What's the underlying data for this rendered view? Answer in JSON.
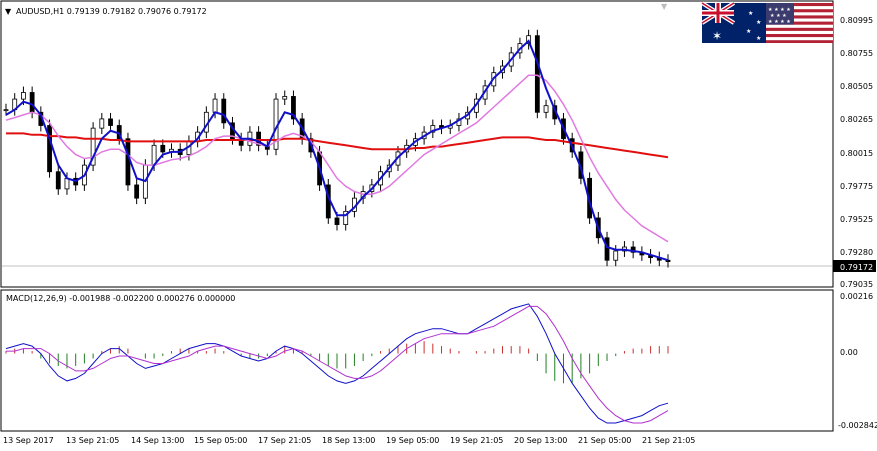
{
  "header": {
    "symbol_line": "AUDUSD,H1  0.79139 0.79182 0.79076 0.79172",
    "dropdown_icon": "triangle-down-icon"
  },
  "flags": {
    "base": "australia-flag",
    "quote": "usa-flag"
  },
  "price_axis": {
    "ticks": [
      "0.80995",
      "0.80755",
      "0.80505",
      "0.80265",
      "0.80015",
      "0.79775",
      "0.79525",
      "0.79280",
      "0.79035"
    ],
    "tick_values": [
      0.80995,
      0.80755,
      0.80505,
      0.80265,
      0.80015,
      0.79775,
      0.79525,
      0.7928,
      0.79035
    ],
    "current_price": "0.79172",
    "current_value": 0.79172
  },
  "macd": {
    "label": "MACD(12,26,9) -0.001988 -0.002200 0.000276 0.000000",
    "axis_ticks": [
      "0.00216",
      "0.00",
      "-0.002842"
    ],
    "axis_values": [
      0.00216,
      0.0,
      -0.002842
    ]
  },
  "time_axis": {
    "labels": [
      "13 Sep 2017",
      "13 Sep 21:05",
      "14 Sep 13:00",
      "15 Sep 05:00",
      "17 Sep 21:05",
      "18 Sep 13:00",
      "19 Sep 05:00",
      "19 Sep 21:05",
      "20 Sep 13:00",
      "21 Sep 05:00",
      "21 Sep 21:05"
    ]
  },
  "colors": {
    "ma_fast": "#1010c8",
    "ma_mid": "#e07ae0",
    "ma_slow": "#e01010",
    "macd_line": "#1010c8",
    "signal_line": "#b030d0",
    "hist_pos": "#c83030",
    "hist_neg": "#208020",
    "candle": "#000000"
  },
  "chart_data": {
    "type": "candlestick",
    "ylim": [
      0.79,
      0.8112
    ],
    "close": [
      0.8032,
      0.804,
      0.8045,
      0.803,
      0.802,
      0.7985,
      0.7972,
      0.798,
      0.7975,
      0.799,
      0.8018,
      0.8025,
      0.802,
      0.801,
      0.7975,
      0.7965,
      0.799,
      0.8005,
      0.8,
      0.8002,
      0.7998,
      0.8008,
      0.8015,
      0.803,
      0.804,
      0.8022,
      0.801,
      0.8005,
      0.8015,
      0.8005,
      0.8002,
      0.804,
      0.8042,
      0.8025,
      0.801,
      0.8,
      0.7975,
      0.795,
      0.7945,
      0.7955,
      0.7965,
      0.797,
      0.7975,
      0.7985,
      0.799,
      0.8,
      0.8005,
      0.801,
      0.8015,
      0.802,
      0.8018,
      0.802,
      0.8025,
      0.803,
      0.804,
      0.805,
      0.806,
      0.8065,
      0.8075,
      0.8082,
      0.8088,
      0.803,
      0.8035,
      0.8025,
      0.801,
      0.8,
      0.798,
      0.795,
      0.7935,
      0.7918,
      0.7925,
      0.7928,
      0.7924,
      0.7922,
      0.792,
      0.7918,
      0.7917
    ],
    "sma_fast": [
      0.8028,
      0.8032,
      0.8038,
      0.8036,
      0.8028,
      0.801,
      0.799,
      0.798,
      0.7978,
      0.7982,
      0.7996,
      0.801,
      0.8016,
      0.8014,
      0.7998,
      0.798,
      0.7978,
      0.799,
      0.7998,
      0.8,
      0.8,
      0.8004,
      0.801,
      0.802,
      0.803,
      0.8028,
      0.8018,
      0.801,
      0.801,
      0.8008,
      0.8004,
      0.8018,
      0.803,
      0.8028,
      0.8018,
      0.8006,
      0.7988,
      0.7966,
      0.7952,
      0.7952,
      0.7958,
      0.7966,
      0.7972,
      0.798,
      0.7988,
      0.7996,
      0.8002,
      0.8008,
      0.8012,
      0.8016,
      0.8018,
      0.802,
      0.8024,
      0.8028,
      0.8036,
      0.8046,
      0.8056,
      0.8062,
      0.807,
      0.8078,
      0.8084,
      0.8068,
      0.8048,
      0.8032,
      0.8018,
      0.8004,
      0.7988,
      0.7962,
      0.7942,
      0.7928,
      0.7926,
      0.7926,
      0.7925,
      0.7924,
      0.7922,
      0.792,
      0.7918
    ],
    "sma_mid": [
      0.8024,
      0.8026,
      0.8028,
      0.803,
      0.8028,
      0.8022,
      0.8012,
      0.8004,
      0.7998,
      0.7995,
      0.7996,
      0.8,
      0.8002,
      0.8002,
      0.7998,
      0.7992,
      0.799,
      0.799,
      0.7992,
      0.7994,
      0.7995,
      0.7997,
      0.8,
      0.8004,
      0.801,
      0.8012,
      0.8012,
      0.801,
      0.8008,
      0.8006,
      0.8004,
      0.8008,
      0.8012,
      0.8014,
      0.8012,
      0.8008,
      0.8,
      0.799,
      0.798,
      0.7974,
      0.797,
      0.7968,
      0.7968,
      0.797,
      0.7974,
      0.798,
      0.7986,
      0.7992,
      0.7998,
      0.8002,
      0.8006,
      0.801,
      0.8014,
      0.8018,
      0.8022,
      0.8028,
      0.8034,
      0.804,
      0.8046,
      0.8052,
      0.8058,
      0.8058,
      0.8054,
      0.8046,
      0.8036,
      0.8024,
      0.801,
      0.7996,
      0.7984,
      0.7974,
      0.7964,
      0.7956,
      0.795,
      0.7944,
      0.794,
      0.7936,
      0.7932
    ],
    "sma_slow": [
      0.8014,
      0.8014,
      0.8014,
      0.8013,
      0.8013,
      0.8012,
      0.8012,
      0.8011,
      0.8011,
      0.801,
      0.801,
      0.801,
      0.8009,
      0.8009,
      0.8008,
      0.8008,
      0.8008,
      0.8008,
      0.8008,
      0.8008,
      0.8008,
      0.8008,
      0.8008,
      0.8009,
      0.8009,
      0.8009,
      0.8009,
      0.8009,
      0.8009,
      0.8009,
      0.8009,
      0.8009,
      0.801,
      0.801,
      0.801,
      0.8009,
      0.8008,
      0.8007,
      0.8006,
      0.8005,
      0.8004,
      0.8003,
      0.8002,
      0.8002,
      0.8002,
      0.8002,
      0.8002,
      0.8003,
      0.8003,
      0.8004,
      0.8004,
      0.8005,
      0.8006,
      0.8007,
      0.8008,
      0.8009,
      0.801,
      0.8011,
      0.8011,
      0.8011,
      0.8011,
      0.801,
      0.8009,
      0.8009,
      0.8008,
      0.8007,
      0.8006,
      0.8005,
      0.8004,
      0.8003,
      0.8002,
      0.8001,
      0.8,
      0.7999,
      0.7998,
      0.7997,
      0.7996
    ],
    "macd_hist": [
      0.0001,
      0.0002,
      0.0002,
      0.0001,
      -0.0002,
      -0.0004,
      -0.0005,
      -0.0006,
      -0.0005,
      -0.0004,
      -0.0002,
      0.0001,
      0.0002,
      0.0003,
      0.0002,
      0.0,
      -0.0002,
      -0.0002,
      -0.0001,
      0.0001,
      0.0002,
      0.0002,
      0.0001,
      0.0001,
      0.0002,
      0.0001,
      0.0,
      -0.0001,
      -0.0002,
      -0.0002,
      -0.0001,
      0.0001,
      0.0003,
      0.0002,
      0.0001,
      -0.0001,
      -0.0003,
      -0.0005,
      -0.0006,
      -0.0006,
      -0.0005,
      -0.0003,
      -0.0001,
      0.0001,
      0.0002,
      0.0003,
      0.0004,
      0.0004,
      0.0005,
      0.0004,
      0.0003,
      0.0002,
      0.0001,
      0.0,
      0.0001,
      0.0001,
      0.0002,
      0.0003,
      0.0003,
      0.0003,
      0.0002,
      -0.0003,
      -0.0008,
      -0.0011,
      -0.0012,
      -0.0012,
      -0.001,
      -0.0008,
      -0.0005,
      -0.0003,
      -0.0001,
      0.0001,
      0.0002,
      0.0002,
      0.0003,
      0.0003,
      0.0003
    ],
    "macd_line": [
      0.0002,
      0.0003,
      0.0004,
      0.0003,
      0.0,
      -0.0005,
      -0.0009,
      -0.0011,
      -0.001,
      -0.0008,
      -0.0004,
      0.0,
      0.0002,
      0.0002,
      -0.0001,
      -0.0004,
      -0.0006,
      -0.0005,
      -0.0004,
      -0.0002,
      0.0,
      0.0002,
      0.0003,
      0.0004,
      0.0004,
      0.0003,
      0.0001,
      -0.0001,
      -0.0002,
      -0.0003,
      -0.0002,
      0.0001,
      0.0003,
      0.0002,
      0.0,
      -0.0003,
      -0.0006,
      -0.0009,
      -0.0011,
      -0.0012,
      -0.0011,
      -0.0009,
      -0.0006,
      -0.0003,
      0.0,
      0.0003,
      0.0006,
      0.0008,
      0.0009,
      0.001,
      0.001,
      0.0009,
      0.0008,
      0.0008,
      0.001,
      0.0012,
      0.0014,
      0.0016,
      0.0018,
      0.0019,
      0.002,
      0.0015,
      0.0008,
      0.0,
      -0.0006,
      -0.0012,
      -0.0017,
      -0.0022,
      -0.0026,
      -0.0028,
      -0.0028,
      -0.0027,
      -0.0026,
      -0.0025,
      -0.0023,
      -0.0021,
      -0.002
    ],
    "signal_line": [
      0.0001,
      0.0001,
      0.0002,
      0.0002,
      0.0002,
      0.0,
      -0.0003,
      -0.0005,
      -0.0007,
      -0.0007,
      -0.0006,
      -0.0004,
      -0.0002,
      -0.0001,
      -0.0001,
      -0.0002,
      -0.0003,
      -0.0004,
      -0.0004,
      -0.0003,
      -0.0002,
      -0.0001,
      0.0001,
      0.0002,
      0.0003,
      0.0003,
      0.0002,
      0.0001,
      0.0,
      -0.0001,
      -0.0002,
      -0.0001,
      0.0001,
      0.0002,
      0.0001,
      -0.0001,
      -0.0003,
      -0.0005,
      -0.0007,
      -0.0009,
      -0.001,
      -0.001,
      -0.0009,
      -0.0007,
      -0.0004,
      -0.0001,
      0.0002,
      0.0004,
      0.0006,
      0.0007,
      0.0008,
      0.0008,
      0.0008,
      0.0008,
      0.0009,
      0.001,
      0.0011,
      0.0013,
      0.0015,
      0.0017,
      0.0019,
      0.0019,
      0.0016,
      0.0011,
      0.0005,
      -0.0002,
      -0.0008,
      -0.0013,
      -0.0018,
      -0.0022,
      -0.0025,
      -0.0027,
      -0.0028,
      -0.0028,
      -0.0027,
      -0.0025,
      -0.0023
    ]
  }
}
